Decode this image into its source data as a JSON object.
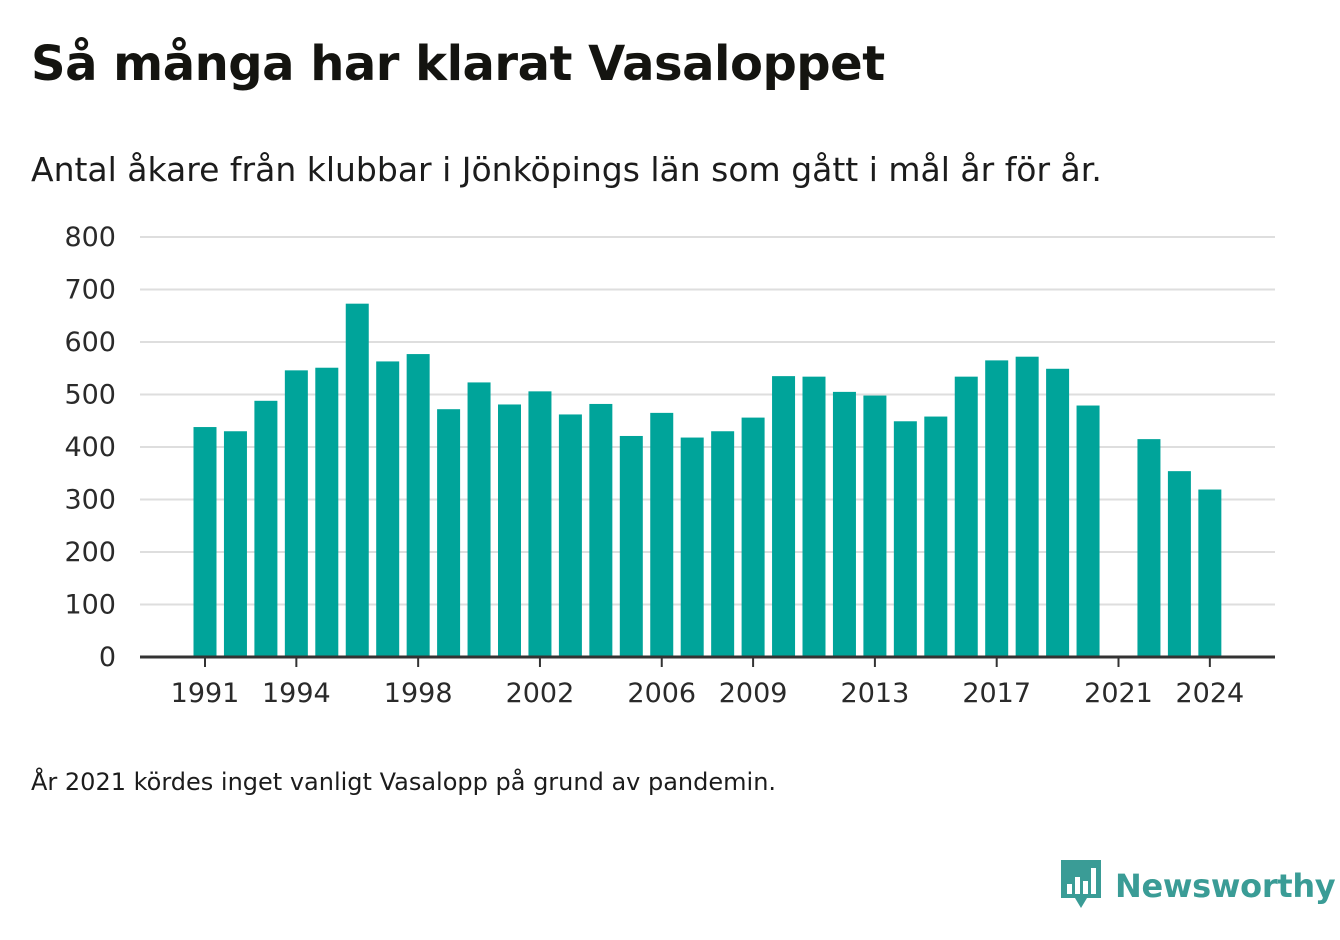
{
  "title": "Så många har klarat Vasaloppet",
  "subtitle": "Antal åkare från klubbar i Jönköpings län som gått i mål år för år.",
  "note": "År 2021 kördes inget vanligt Vasalopp på grund av pandemin.",
  "brand": {
    "name": "Newsworthy",
    "icon": "bar-chart-speech-bubble-icon",
    "color": "#3a9c96"
  },
  "chart_data": {
    "type": "bar",
    "x": [
      1991,
      1992,
      1993,
      1994,
      1995,
      1996,
      1997,
      1998,
      1999,
      2000,
      2001,
      2002,
      2003,
      2004,
      2005,
      2006,
      2007,
      2008,
      2009,
      2010,
      2011,
      2012,
      2013,
      2014,
      2015,
      2016,
      2017,
      2018,
      2019,
      2020,
      2021,
      2022,
      2023,
      2024
    ],
    "values": [
      438,
      430,
      488,
      546,
      551,
      673,
      563,
      577,
      472,
      523,
      481,
      506,
      462,
      482,
      421,
      465,
      418,
      430,
      456,
      535,
      534,
      505,
      498,
      449,
      458,
      534,
      565,
      572,
      549,
      479,
      null,
      415,
      354,
      319
    ],
    "x_tick_labels": [
      "1991",
      "1994",
      "1998",
      "2002",
      "2006",
      "2009",
      "2013",
      "2017",
      "2021",
      "2024"
    ],
    "y_ticks": [
      "0",
      "100",
      "200",
      "300",
      "400",
      "500",
      "600",
      "700",
      "800"
    ],
    "ylim": [
      0,
      800
    ],
    "xlabel": "",
    "ylabel": "",
    "grid": true,
    "bar_color": "#00a49a",
    "grid_color": "#dedede",
    "axis_color": "#333333"
  }
}
